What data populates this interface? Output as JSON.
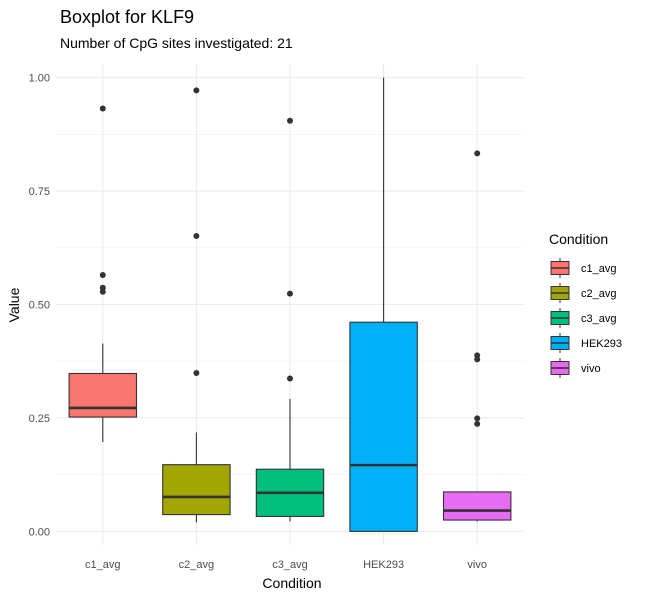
{
  "chart_data": {
    "type": "boxplot",
    "title": "Boxplot for KLF9",
    "subtitle": "Number of CpG sites investigated: 21",
    "xlabel": "Condition",
    "ylabel": "Value",
    "ylim": [
      -0.03,
      1.03
    ],
    "yticks": [
      0.0,
      0.25,
      0.5,
      0.75,
      1.0
    ],
    "ytick_labels": [
      "0.00",
      "0.25",
      "0.50",
      "0.75",
      "1.00"
    ],
    "grid": true,
    "legend": {
      "title": "Condition",
      "position": "right"
    },
    "categories": [
      "c1_avg",
      "c2_avg",
      "c3_avg",
      "HEK293",
      "vivo"
    ],
    "series": [
      {
        "name": "c1_avg",
        "color": "#F8766D",
        "whisker_low": 0.197,
        "q1": 0.252,
        "median": 0.272,
        "q3": 0.348,
        "whisker_high": 0.414,
        "outliers": [
          0.932,
          0.565,
          0.537,
          0.528
        ]
      },
      {
        "name": "c2_avg",
        "color": "#A3A500",
        "whisker_low": 0.02,
        "q1": 0.037,
        "median": 0.076,
        "q3": 0.147,
        "whisker_high": 0.218,
        "outliers": [
          0.972,
          0.651,
          0.349
        ]
      },
      {
        "name": "c3_avg",
        "color": "#00BF7D",
        "whisker_low": 0.022,
        "q1": 0.033,
        "median": 0.085,
        "q3": 0.137,
        "whisker_high": 0.292,
        "outliers": [
          0.905,
          0.524,
          0.337
        ]
      },
      {
        "name": "HEK293",
        "color": "#00B0F6",
        "whisker_low": 0.0,
        "q1": 0.0,
        "median": 0.146,
        "q3": 0.461,
        "whisker_high": 1.0,
        "outliers": []
      },
      {
        "name": "vivo",
        "color": "#E76BF3",
        "whisker_low": 0.022,
        "q1": 0.025,
        "median": 0.046,
        "q3": 0.087,
        "whisker_high": 0.087,
        "outliers": [
          0.833,
          0.388,
          0.379,
          0.249,
          0.237
        ]
      }
    ]
  }
}
